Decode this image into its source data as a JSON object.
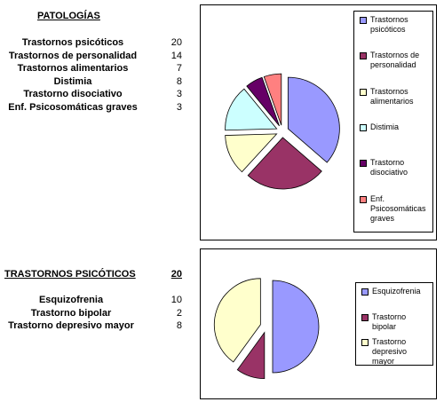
{
  "sections": [
    {
      "title": "PATOLOGÍAS"
    },
    {
      "title": "TRASTORNOS PSICÓTICOS",
      "total": 20
    }
  ],
  "chart_data": [
    {
      "type": "pie",
      "categories": [
        "Trastornos psicóticos",
        "Trastornos de personalidad",
        "Trastornos alimentarios",
        "Distimia",
        "Trastorno disociativo",
        "Enf. Psicosomáticas graves"
      ],
      "values": [
        20,
        14,
        7,
        8,
        3,
        3
      ],
      "colors": [
        "#9999ff",
        "#993366",
        "#ffffcc",
        "#ccffff",
        "#660066",
        "#ff8080"
      ]
    },
    {
      "type": "pie",
      "categories": [
        "Esquizofrenia",
        "Trastorno bipolar",
        "Trastorno depresivo mayor"
      ],
      "values": [
        10,
        2,
        8
      ],
      "colors": [
        "#9999ff",
        "#993366",
        "#ffffcc"
      ]
    }
  ]
}
